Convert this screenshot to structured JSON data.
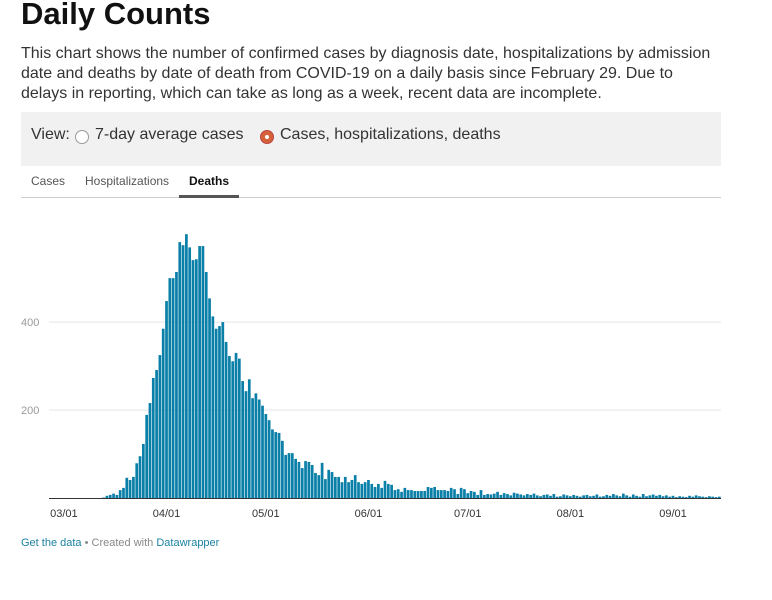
{
  "title": "Daily Counts",
  "description": "This chart shows the number of confirmed cases by diagnosis date, hospitalizations by admission date and deaths by date of death from COVID-19 on a daily basis since February 29. Due to delays in reporting, which can take as long as a week, recent data are incomplete.",
  "view": {
    "label": "View:",
    "options": [
      {
        "label": "7-day average cases",
        "selected": false
      },
      {
        "label": "Cases, hospitalizations, deaths",
        "selected": true
      }
    ]
  },
  "tabs": [
    {
      "label": "Cases"
    },
    {
      "label": "Hospitalizations"
    },
    {
      "label": "Deaths",
      "active": true
    }
  ],
  "colors": {
    "bar": "#0a7fa8",
    "grid": "#e5e5e5",
    "axis": "#333333"
  },
  "chart_data": {
    "type": "bar",
    "title": "Deaths",
    "xlabel": "",
    "ylabel": "",
    "ylim": [
      0,
      655
    ],
    "y_ticks": [
      {
        "value": 200,
        "label": "200"
      },
      {
        "value": 400,
        "label": "400"
      }
    ],
    "x_ticks": [
      {
        "index": 4,
        "label": "03/01"
      },
      {
        "index": 35,
        "label": "04/01"
      },
      {
        "index": 65,
        "label": "05/01"
      },
      {
        "index": 96,
        "label": "06/01"
      },
      {
        "index": 126,
        "label": "07/01"
      },
      {
        "index": 157,
        "label": "08/01"
      },
      {
        "index": 188,
        "label": "09/01"
      }
    ],
    "grid": true,
    "values": [
      0,
      0,
      0,
      0,
      0,
      0,
      0,
      0,
      0,
      0,
      0,
      0,
      0,
      0,
      0,
      0,
      1,
      5,
      7,
      10,
      7,
      18,
      23,
      46,
      41,
      48,
      79,
      95,
      123,
      189,
      216,
      273,
      291,
      325,
      385,
      448,
      500,
      500,
      514,
      582,
      575,
      600,
      570,
      541,
      543,
      573,
      573,
      514,
      454,
      413,
      385,
      391,
      400,
      355,
      323,
      311,
      330,
      317,
      266,
      243,
      270,
      227,
      238,
      224,
      210,
      191,
      177,
      156,
      150,
      148,
      130,
      98,
      102,
      102,
      89,
      82,
      68,
      84,
      82,
      75,
      57,
      52,
      80,
      43,
      64,
      59,
      48,
      48,
      36,
      48,
      36,
      41,
      52,
      36,
      32,
      36,
      41,
      32,
      25,
      32,
      23,
      39,
      32,
      30,
      18,
      20,
      14,
      23,
      18,
      18,
      16,
      16,
      16,
      16,
      25,
      23,
      25,
      18,
      18,
      18,
      16,
      23,
      20,
      9,
      23,
      20,
      11,
      16,
      14,
      7,
      18,
      7,
      9,
      8,
      10,
      14,
      7,
      11,
      9,
      6,
      12,
      10,
      8,
      6,
      9,
      7,
      10,
      6,
      4,
      7,
      8,
      5,
      9,
      3,
      4,
      8,
      6,
      4,
      7,
      5,
      3,
      6,
      7,
      4,
      5,
      8,
      3,
      4,
      7,
      5,
      9,
      6,
      4,
      10,
      6,
      3,
      8,
      5,
      3,
      9,
      4,
      6,
      8,
      5,
      7,
      4,
      6,
      3,
      5,
      2,
      4,
      3,
      2,
      5,
      3,
      6,
      4,
      3,
      2,
      4,
      3,
      2,
      3
    ]
  },
  "footer": {
    "get_data": "Get the data",
    "separator": "•",
    "created_with": "Created with",
    "brand": "Datawrapper"
  }
}
